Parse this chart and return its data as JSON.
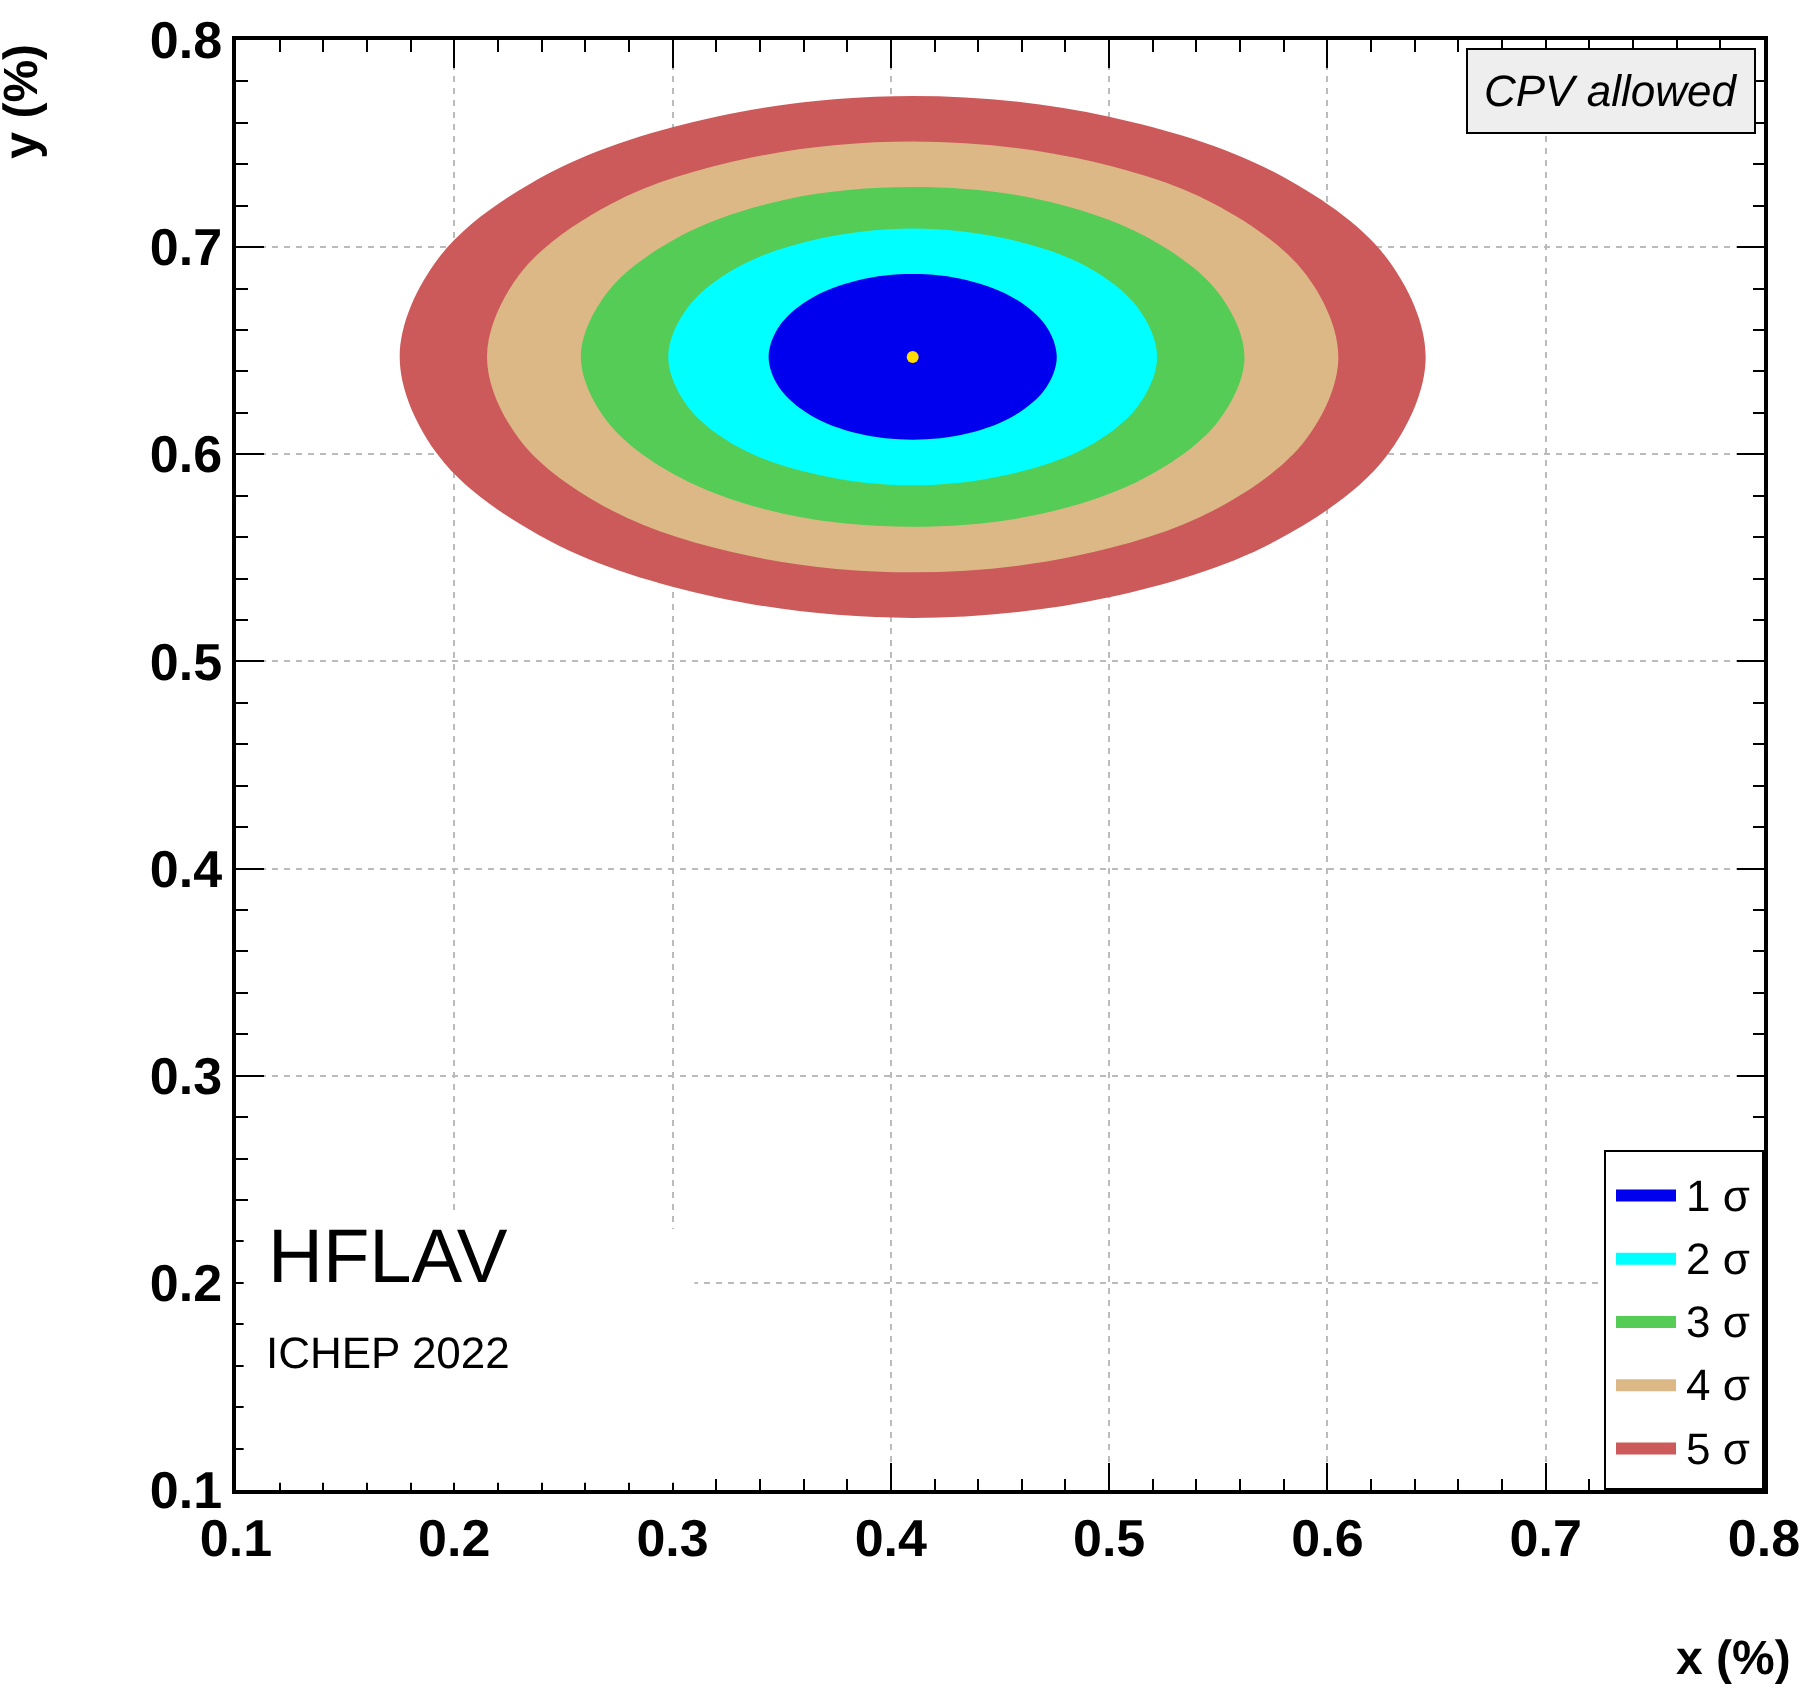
{
  "chart_data": {
    "type": "area",
    "xlabel": "x (%)",
    "ylabel": "y (%)",
    "xlim": [
      0.1,
      0.8
    ],
    "ylim": [
      0.1,
      0.8
    ],
    "xticks": [
      0.1,
      0.2,
      0.3,
      0.4,
      0.5,
      0.6,
      0.7,
      0.8
    ],
    "yticks": [
      0.1,
      0.2,
      0.3,
      0.4,
      0.5,
      0.6,
      0.7,
      0.8
    ],
    "grid": true,
    "legend": "bottom right",
    "annotations": [
      "CPV allowed",
      "HFLAV",
      "ICHEP 2022"
    ],
    "series": [
      {
        "name": "5 σ",
        "color": "#cc5a5a",
        "x": [
          0.645,
          0.627,
          0.576,
          0.5,
          0.41,
          0.32,
          0.244,
          0.193,
          0.175,
          0.193,
          0.244,
          0.32,
          0.41,
          0.5,
          0.576,
          0.627,
          0.645
        ],
        "values": [
          0.647,
          0.695,
          0.736,
          0.763,
          0.773,
          0.763,
          0.736,
          0.695,
          0.647,
          0.599,
          0.558,
          0.531,
          0.521,
          0.531,
          0.558,
          0.599,
          0.647
        ]
      },
      {
        "name": "4 σ",
        "color": "#ddb887",
        "x": [
          0.605,
          0.59,
          0.548,
          0.485,
          0.41,
          0.335,
          0.272,
          0.23,
          0.215,
          0.23,
          0.272,
          0.335,
          0.41,
          0.485,
          0.548,
          0.59,
          0.605
        ],
        "values": [
          0.647,
          0.687,
          0.721,
          0.743,
          0.751,
          0.743,
          0.721,
          0.687,
          0.647,
          0.607,
          0.573,
          0.551,
          0.543,
          0.551,
          0.573,
          0.607,
          0.647
        ]
      },
      {
        "name": "3 σ",
        "color": "#55cc55",
        "x": [
          0.562,
          0.55,
          0.517,
          0.468,
          0.41,
          0.352,
          0.303,
          0.27,
          0.258,
          0.27,
          0.303,
          0.352,
          0.41,
          0.468,
          0.517,
          0.55,
          0.562
        ],
        "values": [
          0.647,
          0.678,
          0.705,
          0.723,
          0.729,
          0.723,
          0.705,
          0.678,
          0.647,
          0.616,
          0.589,
          0.571,
          0.565,
          0.571,
          0.589,
          0.616,
          0.647
        ]
      },
      {
        "name": "2 σ",
        "color": "#00ffff",
        "x": [
          0.522,
          0.513,
          0.489,
          0.453,
          0.41,
          0.367,
          0.331,
          0.307,
          0.298,
          0.307,
          0.331,
          0.367,
          0.41,
          0.453,
          0.489,
          0.513,
          0.522
        ],
        "values": [
          0.647,
          0.671,
          0.691,
          0.704,
          0.709,
          0.704,
          0.691,
          0.671,
          0.647,
          0.623,
          0.603,
          0.59,
          0.585,
          0.59,
          0.603,
          0.623,
          0.647
        ]
      },
      {
        "name": "1 σ",
        "color": "#0000ee",
        "x": [
          0.476,
          0.471,
          0.457,
          0.435,
          0.41,
          0.385,
          0.363,
          0.349,
          0.344,
          0.349,
          0.363,
          0.385,
          0.41,
          0.435,
          0.457,
          0.471,
          0.476
        ],
        "values": [
          0.647,
          0.662,
          0.675,
          0.684,
          0.687,
          0.684,
          0.675,
          0.662,
          0.647,
          0.632,
          0.619,
          0.61,
          0.607,
          0.61,
          0.619,
          0.632,
          0.647
        ]
      },
      {
        "type": "scatter",
        "color": "#ffdd00",
        "marker": "circle",
        "x": [
          0.41
        ],
        "values": [
          0.647
        ]
      }
    ]
  }
}
